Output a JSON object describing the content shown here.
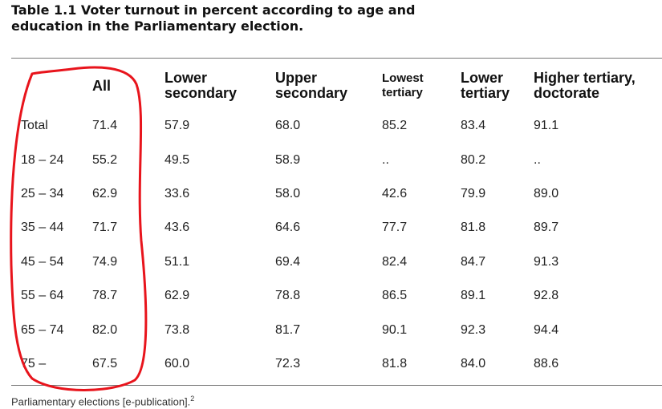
{
  "title": {
    "line1": "Table 1.1 Voter turnout in percent according to age and",
    "line2": "education in the Parliamentary election."
  },
  "table": {
    "headers": [
      "",
      "All",
      "Lower secondary",
      "Upper secondary",
      "Lowest tertiary",
      "Lower tertiary",
      "Higher tertiary, doctorate"
    ],
    "header_lines": [
      [
        "",
        ""
      ],
      [
        "All",
        ""
      ],
      [
        "Lower",
        "secondary"
      ],
      [
        "Upper",
        "secondary"
      ],
      [
        "Lowest",
        "tertiary"
      ],
      [
        "Lower",
        "tertiary"
      ],
      [
        "Higher tertiary,",
        "doctorate"
      ]
    ],
    "rows": [
      [
        "Total",
        "71.4",
        "57.9",
        "68.0",
        "85.2",
        "83.4",
        "91.1"
      ],
      [
        "18 – 24",
        "55.2",
        "49.5",
        "58.9",
        "..",
        "80.2",
        ".."
      ],
      [
        "25 – 34",
        "62.9",
        "33.6",
        "58.0",
        "42.6",
        "79.9",
        "89.0"
      ],
      [
        "35 – 44",
        "71.7",
        "43.6",
        "64.6",
        "77.7",
        "81.8",
        "89.7"
      ],
      [
        "45 – 54",
        "74.9",
        "51.1",
        "69.4",
        "82.4",
        "84.7",
        "91.3"
      ],
      [
        "55 – 64",
        "78.7",
        "62.9",
        "78.8",
        "86.5",
        "89.1",
        "92.8"
      ],
      [
        "65 – 74",
        "82.0",
        "73.8",
        "81.7",
        "90.1",
        "92.3",
        "94.4"
      ],
      [
        "75 –",
        "67.5",
        "60.0",
        "72.3",
        "81.8",
        "84.0",
        "88.6"
      ]
    ]
  },
  "source": {
    "text": "Parliamentary elections [e-publication].",
    "superscript": "2"
  },
  "annotation": {
    "color": "#e8141c"
  }
}
